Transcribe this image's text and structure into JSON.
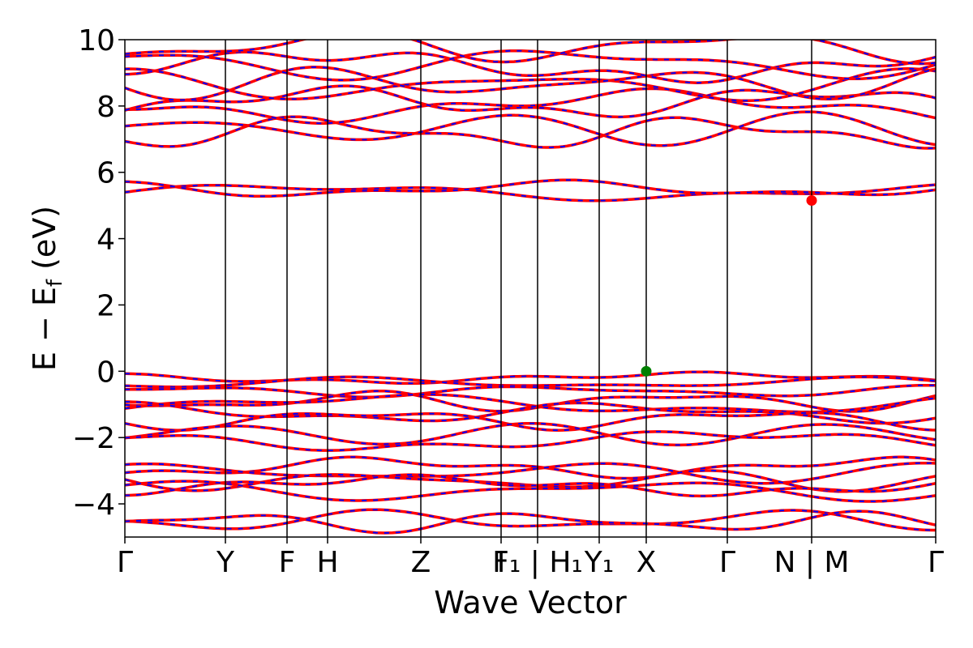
{
  "chart_data": {
    "type": "line",
    "title": "",
    "xlabel": "Wave Vector",
    "ylabel": "E − E_f (eV)",
    "ylabel_parts": {
      "main": "E − E",
      "sub": "f",
      "tail": " (eV)"
    },
    "ylim": [
      -5,
      10
    ],
    "yticks": [
      -4,
      -2,
      0,
      2,
      4,
      6,
      8,
      10
    ],
    "ytick_labels": [
      "−4",
      "−2",
      "0",
      "2",
      "4",
      "6",
      "8",
      "10"
    ],
    "xlim": [
      0,
      1
    ],
    "high_symmetry_points": [
      {
        "label": "Γ",
        "x": 0.0
      },
      {
        "label": "Y",
        "x": 0.124
      },
      {
        "label": "F",
        "x": 0.2
      },
      {
        "label": "H",
        "x": 0.25
      },
      {
        "label": "Z",
        "x": 0.365
      },
      {
        "label": "I",
        "x": 0.464
      },
      {
        "label": "F₁ | H₁",
        "x": 0.509
      },
      {
        "label": "Y₁",
        "x": 0.585
      },
      {
        "label": "X",
        "x": 0.643
      },
      {
        "label": "Γ",
        "x": 0.743
      },
      {
        "label": "N | M",
        "x": 0.847
      },
      {
        "label": "Γ",
        "x": 1.0
      }
    ],
    "series": [
      {
        "name": "",
        "color": "#ff0000",
        "style": "solid"
      },
      {
        "name": "",
        "color": "#0000ff",
        "style": "dashed"
      }
    ],
    "conduction_bands_at_gamma": [
      5.4,
      5.5,
      7.2,
      7.3,
      8.0,
      8.1,
      8.6,
      8.7,
      9.2,
      9.3,
      9.8
    ],
    "valence_bands_at_gamma": [
      -0.2,
      -0.35,
      -0.6,
      -0.9,
      -1.0,
      -1.25,
      -1.45,
      -1.9,
      -2.1,
      -2.9,
      -3.05,
      -3.3,
      -3.45,
      -3.6,
      -4.5,
      -4.55
    ],
    "markers": [
      {
        "label": "VBM",
        "x": 0.643,
        "y": 0.0,
        "color": "#008000"
      },
      {
        "label": "CBM",
        "x": 0.847,
        "y": 5.15,
        "color": "#ff0000"
      }
    ],
    "grid": false,
    "legend": "none"
  }
}
